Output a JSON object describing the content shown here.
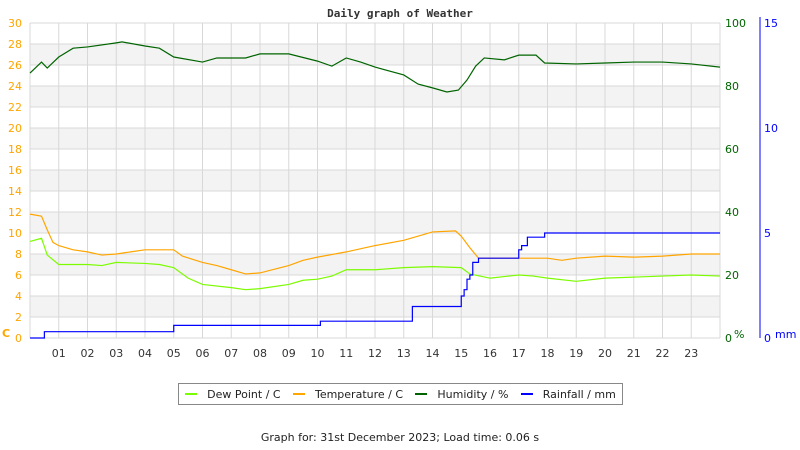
{
  "chart_data": {
    "type": "line",
    "title": "Daily graph of Weather",
    "x_ticks": [
      "01",
      "02",
      "03",
      "04",
      "05",
      "06",
      "07",
      "08",
      "09",
      "10",
      "11",
      "12",
      "13",
      "14",
      "15",
      "16",
      "17",
      "18",
      "19",
      "20",
      "21",
      "22",
      "23"
    ],
    "xlim": [
      0,
      24
    ],
    "axes": {
      "left": {
        "label": "C",
        "ylim": [
          0,
          30
        ],
        "ticks": [
          0,
          2,
          4,
          6,
          8,
          10,
          12,
          14,
          16,
          18,
          20,
          22,
          24,
          26,
          28,
          30
        ],
        "color": "#ffa500"
      },
      "right1": {
        "label": "%",
        "ylim": [
          0,
          100
        ],
        "ticks": [
          0,
          20,
          40,
          60,
          80,
          100
        ],
        "color": "#006400"
      },
      "right2": {
        "label": "mm",
        "ylim": [
          0,
          15
        ],
        "ticks": [
          0,
          5,
          10,
          15
        ],
        "color": "#0000ff"
      }
    },
    "grid": true,
    "legend_position": "bottom",
    "series": [
      {
        "name": "Dew Point / C",
        "axis": "left",
        "color": "#7cfc00",
        "x": [
          0,
          0.4,
          0.6,
          1,
          2,
          2.5,
          3,
          4,
          4.5,
          5,
          5.5,
          6,
          7,
          7.5,
          8,
          9,
          9.5,
          10,
          10.5,
          11,
          12,
          13,
          14,
          15,
          15.3,
          16,
          17,
          17.5,
          18,
          19,
          20,
          21,
          22,
          23,
          24
        ],
        "y": [
          9.2,
          9.5,
          7.9,
          7.0,
          7.0,
          6.9,
          7.2,
          7.1,
          7.0,
          6.7,
          5.7,
          5.1,
          4.8,
          4.6,
          4.7,
          5.1,
          5.5,
          5.6,
          5.9,
          6.5,
          6.5,
          6.7,
          6.8,
          6.7,
          6.1,
          5.7,
          6.0,
          5.9,
          5.7,
          5.4,
          5.7,
          5.8,
          5.9,
          6.0,
          5.9
        ]
      },
      {
        "name": "Temperature / C",
        "axis": "left",
        "color": "#ffa500",
        "x": [
          0,
          0.4,
          0.6,
          0.8,
          1,
          1.5,
          2,
          2.5,
          3,
          3.5,
          4,
          5,
          5.3,
          6,
          6.5,
          7,
          7.5,
          8,
          9,
          9.5,
          10,
          11,
          12,
          13,
          14,
          14.8,
          15,
          15.3,
          15.6,
          16,
          17,
          18,
          18.5,
          19,
          20,
          21,
          22,
          23,
          24
        ],
        "y": [
          11.8,
          11.6,
          10.3,
          9.1,
          8.8,
          8.4,
          8.2,
          7.9,
          8.0,
          8.2,
          8.4,
          8.4,
          7.8,
          7.2,
          6.9,
          6.5,
          6.1,
          6.2,
          6.9,
          7.4,
          7.7,
          8.2,
          8.8,
          9.3,
          10.1,
          10.2,
          9.7,
          8.6,
          7.6,
          7.6,
          7.6,
          7.6,
          7.4,
          7.6,
          7.8,
          7.7,
          7.8,
          8.0,
          8.0
        ]
      },
      {
        "name": "Humidity / %",
        "axis": "right1",
        "color": "#006400",
        "x": [
          0,
          0.4,
          0.6,
          1,
          1.5,
          2,
          3,
          3.2,
          4,
          4.5,
          5,
          6,
          6.5,
          7.5,
          8,
          9,
          10,
          10.5,
          11,
          11.5,
          12,
          13,
          13.5,
          14,
          14.5,
          14.9,
          15.2,
          15.5,
          15.8,
          16.5,
          17,
          17.6,
          17.9,
          19,
          20,
          21,
          22,
          23,
          24
        ],
        "y": [
          84.1,
          87.6,
          85.7,
          89.2,
          92.0,
          92.4,
          93.7,
          94.0,
          92.7,
          92.0,
          89.2,
          87.6,
          88.9,
          88.9,
          90.2,
          90.2,
          87.9,
          86.3,
          88.9,
          87.6,
          86.0,
          83.5,
          80.6,
          79.4,
          78.1,
          78.7,
          81.9,
          86.3,
          88.9,
          88.3,
          89.8,
          89.8,
          87.3,
          87.0,
          87.3,
          87.6,
          87.6,
          87.0,
          86.0
        ]
      },
      {
        "name": "Rainfall / mm",
        "axis": "right2",
        "color": "#0000ff",
        "step": true,
        "x": [
          0,
          0.5,
          5,
          10.1,
          13.3,
          15,
          15.1,
          15.2,
          15.3,
          15.4,
          15.6,
          17,
          17.1,
          17.3,
          17.9,
          24
        ],
        "y": [
          0,
          0.3,
          0.6,
          0.8,
          1.5,
          2.0,
          2.3,
          2.8,
          3.0,
          3.6,
          3.8,
          4.2,
          4.4,
          4.8,
          5.0,
          5.0
        ]
      }
    ]
  },
  "footer": "Graph for: 31st December 2023; Load time: 0.06 s"
}
